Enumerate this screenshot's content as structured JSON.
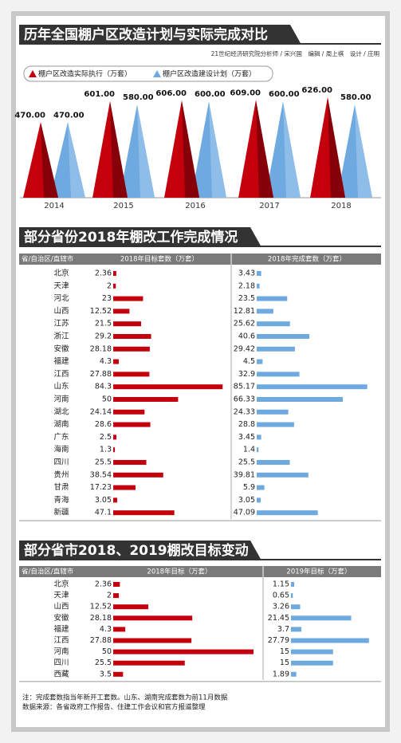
{
  "chart_data": [
    {
      "type": "triangle",
      "title": "历年全国棚户区改造计划与实际完成对比",
      "subtitle": "21世纪经济研究院分析师 / 宋兴国　编辑 / 周上祺　设计 / 庄明",
      "categories": [
        "2014",
        "2015",
        "2016",
        "2017",
        "2018"
      ],
      "series": [
        {
          "name": "棚户区改造实际执行（万套）",
          "color": "#c4000d",
          "values": [
            470,
            601,
            606,
            609,
            626
          ],
          "value_labels": [
            "470.00",
            "601.00",
            "606.00",
            "609.00",
            "626.00"
          ]
        },
        {
          "name": "棚户区改造建设计划（万套）",
          "color": "#6ea9e0",
          "values": [
            470,
            580,
            600,
            600,
            580
          ],
          "value_labels": [
            "470.00",
            "580.00",
            "600.00",
            "600.00",
            "580.00"
          ]
        }
      ],
      "ylim": [
        0,
        650
      ]
    },
    {
      "type": "bar",
      "title": "部分省份2018年棚改工作完成情况",
      "category_header": "省/自治区/直辖市",
      "categories": [
        "北京",
        "天津",
        "河北",
        "山西",
        "江苏",
        "浙江",
        "安徽",
        "福建",
        "江西",
        "山东",
        "河南",
        "湖北",
        "湖南",
        "广东",
        "海南",
        "四川",
        "贵州",
        "甘肃",
        "青海",
        "新疆"
      ],
      "series": [
        {
          "name": "2018年目标套数（万套）",
          "color": "#c4000d",
          "values": [
            2.36,
            2,
            23,
            12.52,
            21.5,
            29.2,
            28.18,
            4.3,
            27.88,
            84.3,
            50,
            24.14,
            28.6,
            2.5,
            1.3,
            25.5,
            38.54,
            17.23,
            3.05,
            47.1
          ]
        },
        {
          "name": "2018年完成套数（万套）",
          "color": "#6ea9e0",
          "values": [
            3.43,
            2.18,
            23.5,
            12.81,
            25.62,
            40.6,
            29.42,
            4.5,
            32.9,
            85.17,
            66.33,
            24.33,
            28.8,
            3.45,
            1.4,
            25.5,
            39.81,
            5.9,
            3.05,
            47.09
          ]
        }
      ],
      "xlim": [
        0,
        86
      ]
    },
    {
      "type": "bar",
      "title": "部分省市2018、2019棚改目标变动",
      "category_header": "省/自治区/直辖市",
      "categories": [
        "北京",
        "天津",
        "山西",
        "安徽",
        "福建",
        "江西",
        "河南",
        "四川",
        "西藏"
      ],
      "series": [
        {
          "name": "2018年目标（万套）",
          "color": "#c4000d",
          "values": [
            2.36,
            2,
            12.52,
            28.18,
            4.3,
            27.88,
            50,
            25.5,
            3.5
          ]
        },
        {
          "name": "2019年目标（万套）",
          "color": "#6ea9e0",
          "values": [
            1.15,
            0.65,
            3.26,
            21.45,
            3.7,
            27.79,
            15,
            15,
            1.89
          ]
        }
      ],
      "xlim": [
        0,
        50
      ]
    }
  ],
  "notes": [
    "注：完成套数指当年新开工套数。山东、湖南完成套数为前11月数据",
    "数据来源：各省政府工作报告、住建工作会议和官方报道整理"
  ]
}
